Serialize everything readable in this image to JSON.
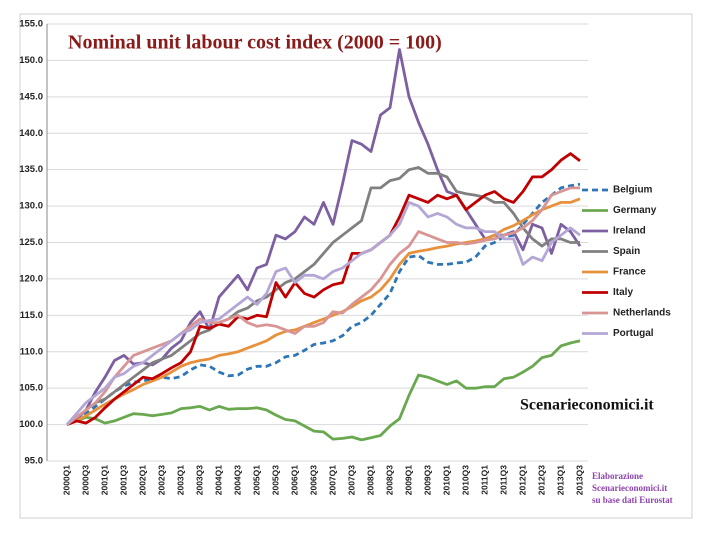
{
  "chart_data": {
    "type": "line",
    "title": "Nominal unit labour cost index (2000 = 100)",
    "annotations": [
      "Scenarieconomici.it"
    ],
    "footnote": [
      "Elaborazione",
      "Scenarieconomici.it",
      "su base dati Eurostat"
    ],
    "categories": [
      "2000Q1",
      null,
      "2000Q3",
      null,
      "2001Q1",
      null,
      "2001Q3",
      null,
      "2002Q1",
      null,
      "2002Q3",
      null,
      "2003Q1",
      null,
      "2003Q3",
      null,
      "2004Q1",
      null,
      "2004Q3",
      null,
      "2005Q1",
      null,
      "2005Q3",
      null,
      "2006Q1",
      null,
      "2006Q3",
      null,
      "2007Q1",
      null,
      "2007Q3",
      null,
      "2008Q1",
      null,
      "2008Q3",
      null,
      "2009Q1",
      null,
      "2009Q3",
      null,
      "2010Q1",
      null,
      "2010Q3",
      null,
      "2011Q1",
      null,
      "2011Q3",
      null,
      "2012Q1",
      null,
      "2012Q3",
      null,
      "2013Q1",
      null,
      "2013Q3"
    ],
    "ylim": [
      95,
      155
    ],
    "yticks": [
      {
        "value": 95,
        "label": "95.0"
      },
      {
        "value": 100,
        "label": "100.0"
      },
      {
        "value": 105,
        "label": "105.0"
      },
      {
        "value": 110,
        "label": "110.0"
      },
      {
        "value": 115,
        "label": "115.0"
      },
      {
        "value": 120,
        "label": "120.0"
      },
      {
        "value": 125,
        "label": "125.0"
      },
      {
        "value": 130,
        "label": "130.0"
      },
      {
        "value": 135,
        "label": "135.0"
      },
      {
        "value": 140,
        "label": "140.0"
      },
      {
        "value": 145,
        "label": "145.0"
      },
      {
        "value": 150,
        "label": "150.0"
      },
      {
        "value": 155,
        "label": "155.0"
      }
    ],
    "grid": true,
    "legend": "right",
    "series": [
      {
        "name": "Belgium",
        "color": "#2e75b6",
        "dashed": true,
        "values": [
          100,
          100.8,
          101.5,
          102.5,
          103.5,
          104.5,
          105.3,
          105.8,
          106,
          106.3,
          106.5,
          106.3,
          106.6,
          107.5,
          108.2,
          108,
          107.2,
          106.7,
          106.8,
          107.6,
          108,
          108,
          108.5,
          109.3,
          109.5,
          110.2,
          111,
          111.2,
          111.5,
          112.2,
          113.5,
          114,
          115,
          116.5,
          118,
          121,
          123,
          123.2,
          122.3,
          122,
          122,
          122.2,
          122.3,
          123,
          124.5,
          125,
          125.8,
          126,
          127.5,
          129,
          130.5,
          131.5,
          132.5,
          132.8,
          133
        ]
      },
      {
        "name": "Germany",
        "color": "#6aa84f",
        "values": [
          100,
          100.5,
          101,
          100.8,
          100.2,
          100.5,
          101,
          101.5,
          101.4,
          101.2,
          101.4,
          101.6,
          102.2,
          102.3,
          102.5,
          102,
          102.5,
          102.1,
          102.2,
          102.2,
          102.3,
          102,
          101.3,
          100.7,
          100.5,
          99.8,
          99.1,
          99,
          98,
          98.1,
          98.3,
          97.9,
          98.2,
          98.5,
          99.8,
          100.8,
          104,
          106.8,
          106.5,
          106,
          105.5,
          106,
          105,
          105,
          105.2,
          105.2,
          106.3,
          106.5,
          107.2,
          108,
          109.2,
          109.5,
          110.8,
          111.2,
          111.5
        ]
      },
      {
        "name": "Ireland",
        "color": "#7d60a0",
        "values": [
          100,
          100.7,
          102,
          104.5,
          106.5,
          108.8,
          109.5,
          108.3,
          108.5,
          108.2,
          109,
          110.5,
          111.5,
          114,
          115.5,
          113,
          117.5,
          119,
          120.5,
          118.5,
          121.5,
          122,
          126,
          125.5,
          126.5,
          128.5,
          127.5,
          130.5,
          127.5,
          133,
          139,
          138.5,
          137.5,
          142.5,
          143.5,
          151.5,
          145,
          141.5,
          138.5,
          135,
          132,
          131.5,
          129.5,
          127.5,
          125.5,
          126,
          126,
          126.5,
          124,
          127.5,
          127,
          123.5,
          127.5,
          126.5,
          124.5
        ]
      },
      {
        "name": "Spain",
        "color": "#808080",
        "values": [
          100,
          101,
          102,
          103,
          103.5,
          104.5,
          105.5,
          106.5,
          107.5,
          108.5,
          109,
          109.5,
          110.5,
          111.5,
          112.5,
          113,
          114,
          114.5,
          115.5,
          116,
          117,
          117.5,
          118.5,
          119.5,
          120,
          121,
          122,
          123.5,
          125,
          126,
          127,
          128,
          132.5,
          132.5,
          133.5,
          133.8,
          135,
          135.3,
          134.5,
          134.5,
          134,
          132,
          131.7,
          131.5,
          131.2,
          130.5,
          130.5,
          129,
          127,
          125.5,
          124.5,
          125.5,
          125.5,
          125,
          125
        ]
      },
      {
        "name": "France",
        "color": "#e8913b",
        "values": [
          100,
          100.5,
          101.2,
          102,
          102.8,
          103.5,
          104.2,
          104.8,
          105.5,
          106,
          106.5,
          107.2,
          108,
          108.5,
          108.8,
          109,
          109.5,
          109.7,
          110,
          110.5,
          111,
          111.5,
          112.3,
          112.8,
          113,
          113.5,
          114,
          114.5,
          115,
          115.5,
          116.2,
          117,
          117.5,
          118.5,
          120,
          122,
          123.5,
          123.8,
          124,
          124.3,
          124.5,
          124.8,
          125,
          125.2,
          125.5,
          126,
          126.8,
          127.3,
          128,
          128.8,
          129.5,
          130,
          130.5,
          130.5,
          131
        ]
      },
      {
        "name": "Italy",
        "color": "#c00000",
        "values": [
          100,
          100.5,
          100.2,
          101,
          102.3,
          103.5,
          104.5,
          105.5,
          106.5,
          106.3,
          107,
          107.8,
          108.5,
          110,
          113.5,
          113.2,
          113.8,
          113.5,
          114.8,
          114.5,
          115,
          114.8,
          119.5,
          117.5,
          119.5,
          118,
          117.5,
          118.5,
          119.2,
          119.5,
          123.5,
          123.5,
          124,
          125,
          126,
          128.5,
          131.5,
          131,
          130.5,
          131.5,
          131,
          131.5,
          129.5,
          130.5,
          131.5,
          132,
          131,
          130.5,
          132,
          134,
          134,
          135,
          136.3,
          137.2,
          136.2
        ]
      },
      {
        "name": "Netherlands",
        "color": "#d99594",
        "values": [
          100,
          101,
          102,
          103,
          104.5,
          106.5,
          108,
          109.5,
          110,
          110.5,
          111,
          111.5,
          112.5,
          113.5,
          114.5,
          114,
          114,
          114.5,
          115,
          114,
          113.5,
          113.7,
          113.5,
          113,
          112.5,
          113.5,
          113.5,
          114,
          115.5,
          115.3,
          116.5,
          117.5,
          118.5,
          120,
          122,
          123.5,
          124.5,
          126.5,
          126,
          125.5,
          125,
          125,
          124.8,
          125,
          125.3,
          125.5,
          126,
          126.3,
          127,
          128,
          129.5,
          131.5,
          132,
          132.5,
          132.5
        ]
      },
      {
        "name": "Portugal",
        "color": "#b4a7d6",
        "values": [
          100,
          101.5,
          103,
          104,
          105,
          106.5,
          107,
          108,
          108.5,
          109.5,
          110.5,
          111.5,
          112.5,
          113,
          114,
          114.3,
          114.5,
          115.5,
          116.5,
          117.5,
          116.5,
          118,
          121,
          121.5,
          119.5,
          120.5,
          120.5,
          120,
          121,
          121.5,
          122.5,
          123.5,
          124,
          125,
          126,
          127.5,
          130.5,
          130,
          128.5,
          129,
          128.5,
          127.5,
          127,
          127,
          126.5,
          126.5,
          125.5,
          125.5,
          122,
          123,
          122.5,
          125,
          126,
          127,
          126
        ]
      }
    ]
  }
}
